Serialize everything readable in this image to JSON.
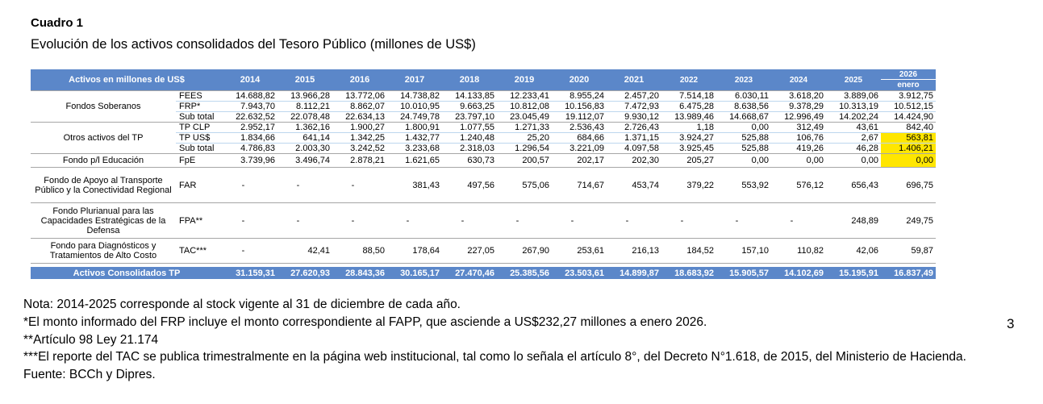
{
  "title": "Cuadro 1",
  "subtitle": "Evolución de los activos consolidados del Tesoro Público (millones de US$)",
  "page_number": "3",
  "colors": {
    "header_blue": "#5B87C9",
    "highlight_yellow": "#FFE600",
    "inner_rule_blue": "#BDD7EE",
    "group_rule_gray": "#A6A6A6"
  },
  "table": {
    "header_label": "Activos en millones de US$",
    "years": [
      "2014",
      "2015",
      "2016",
      "2017",
      "2018",
      "2019",
      "2020",
      "2021",
      "2022",
      "2023",
      "2024",
      "2025"
    ],
    "last_col": {
      "year": "2026",
      "sub": "enero"
    },
    "groups": [
      {
        "label": "Fondos Soberanos",
        "rows": [
          {
            "code": "FEES",
            "highlight_last": false,
            "values": [
              "14.688,82",
              "13.966,28",
              "13.772,06",
              "14.738,82",
              "14.133,85",
              "12.233,41",
              "8.955,24",
              "2.457,20",
              "7.514,18",
              "6.030,11",
              "3.618,20",
              "3.889,06",
              "3.912,75"
            ]
          },
          {
            "code": "FRP*",
            "highlight_last": false,
            "values": [
              "7.943,70",
              "8.112,21",
              "8.862,07",
              "10.010,95",
              "9.663,25",
              "10.812,08",
              "10.156,83",
              "7.472,93",
              "6.475,28",
              "8.638,56",
              "9.378,29",
              "10.313,19",
              "10.512,15"
            ]
          },
          {
            "code": "Sub total",
            "highlight_last": false,
            "values": [
              "22.632,52",
              "22.078,48",
              "22.634,13",
              "24.749,78",
              "23.797,10",
              "23.045,49",
              "19.112,07",
              "9.930,12",
              "13.989,46",
              "14.668,67",
              "12.996,49",
              "14.202,24",
              "14.424,90"
            ]
          }
        ]
      },
      {
        "label": "Otros activos del TP",
        "rows": [
          {
            "code": "TP CLP",
            "highlight_last": false,
            "values": [
              "2.952,17",
              "1.362,16",
              "1.900,27",
              "1.800,91",
              "1.077,55",
              "1.271,33",
              "2.536,43",
              "2.726,43",
              "1,18",
              "0,00",
              "312,49",
              "43,61",
              "842,40"
            ]
          },
          {
            "code": "TP US$",
            "highlight_last": true,
            "values": [
              "1.834,66",
              "641,14",
              "1.342,25",
              "1.432,77",
              "1.240,48",
              "25,20",
              "684,66",
              "1.371,15",
              "3.924,27",
              "525,88",
              "106,76",
              "2,67",
              "563,81"
            ]
          },
          {
            "code": "Sub total",
            "highlight_last": true,
            "values": [
              "4.786,83",
              "2.003,30",
              "3.242,52",
              "3.233,68",
              "2.318,03",
              "1.296,54",
              "3.221,09",
              "4.097,58",
              "3.925,45",
              "525,88",
              "419,26",
              "46,28",
              "1.406,21"
            ]
          }
        ]
      },
      {
        "label": "Fondo p/l Educación",
        "rows": [
          {
            "code": "FpE",
            "highlight_last": true,
            "values": [
              "3.739,96",
              "3.496,74",
              "2.878,21",
              "1.621,65",
              "630,73",
              "200,57",
              "202,17",
              "202,30",
              "205,27",
              "0,00",
              "0,00",
              "0,00",
              "0,00"
            ]
          }
        ]
      },
      {
        "label": "Fondo de Apoyo al Transporte Público y la Conectividad Regional",
        "tall": 3,
        "rows": [
          {
            "code": "FAR",
            "highlight_last": false,
            "values": [
              "-",
              "-",
              "-",
              "381,43",
              "497,56",
              "575,06",
              "714,67",
              "453,74",
              "379,22",
              "553,92",
              "576,12",
              "656,43",
              "696,75"
            ]
          }
        ]
      },
      {
        "label": "Fondo Plurianual para las Capacidades Estratégicas de la Defensa",
        "tall": 3,
        "rows": [
          {
            "code": "FPA**",
            "highlight_last": false,
            "values": [
              "-",
              "-",
              "-",
              "-",
              "-",
              "-",
              "-",
              "-",
              "-",
              "-",
              "-",
              "248,89",
              "249,75"
            ]
          }
        ]
      },
      {
        "label": "Fondo para Diagnósticos y Tratamientos de Alto Costo",
        "tall": 2,
        "rows": [
          {
            "code": "TAC***",
            "highlight_last": false,
            "values": [
              "-",
              "42,41",
              "88,50",
              "178,64",
              "227,05",
              "267,90",
              "253,61",
              "216,13",
              "184,52",
              "157,10",
              "110,82",
              "42,06",
              "59,87"
            ]
          }
        ]
      }
    ],
    "total": {
      "label": "Activos Consolidados TP",
      "values": [
        "31.159,31",
        "27.620,93",
        "28.843,36",
        "30.165,17",
        "27.470,46",
        "25.385,56",
        "23.503,61",
        "14.899,87",
        "18.683,92",
        "15.905,57",
        "14.102,69",
        "15.195,91",
        "16.837,49"
      ]
    }
  },
  "notes": [
    "Nota: 2014-2025 corresponde al stock vigente al 31 de diciembre de cada año.",
    "*El monto informado del FRP incluye el monto correspondiente al FAPP, que asciende a US$232,27 millones a enero 2026.",
    "**Artículo 98 Ley 21.174",
    "***El reporte del TAC se publica trimestralmente en la página web institucional, tal como lo señala el artículo 8°, del Decreto N°1.618, de 2015, del Ministerio de Hacienda.",
    "Fuente: BCCh y Dipres."
  ]
}
